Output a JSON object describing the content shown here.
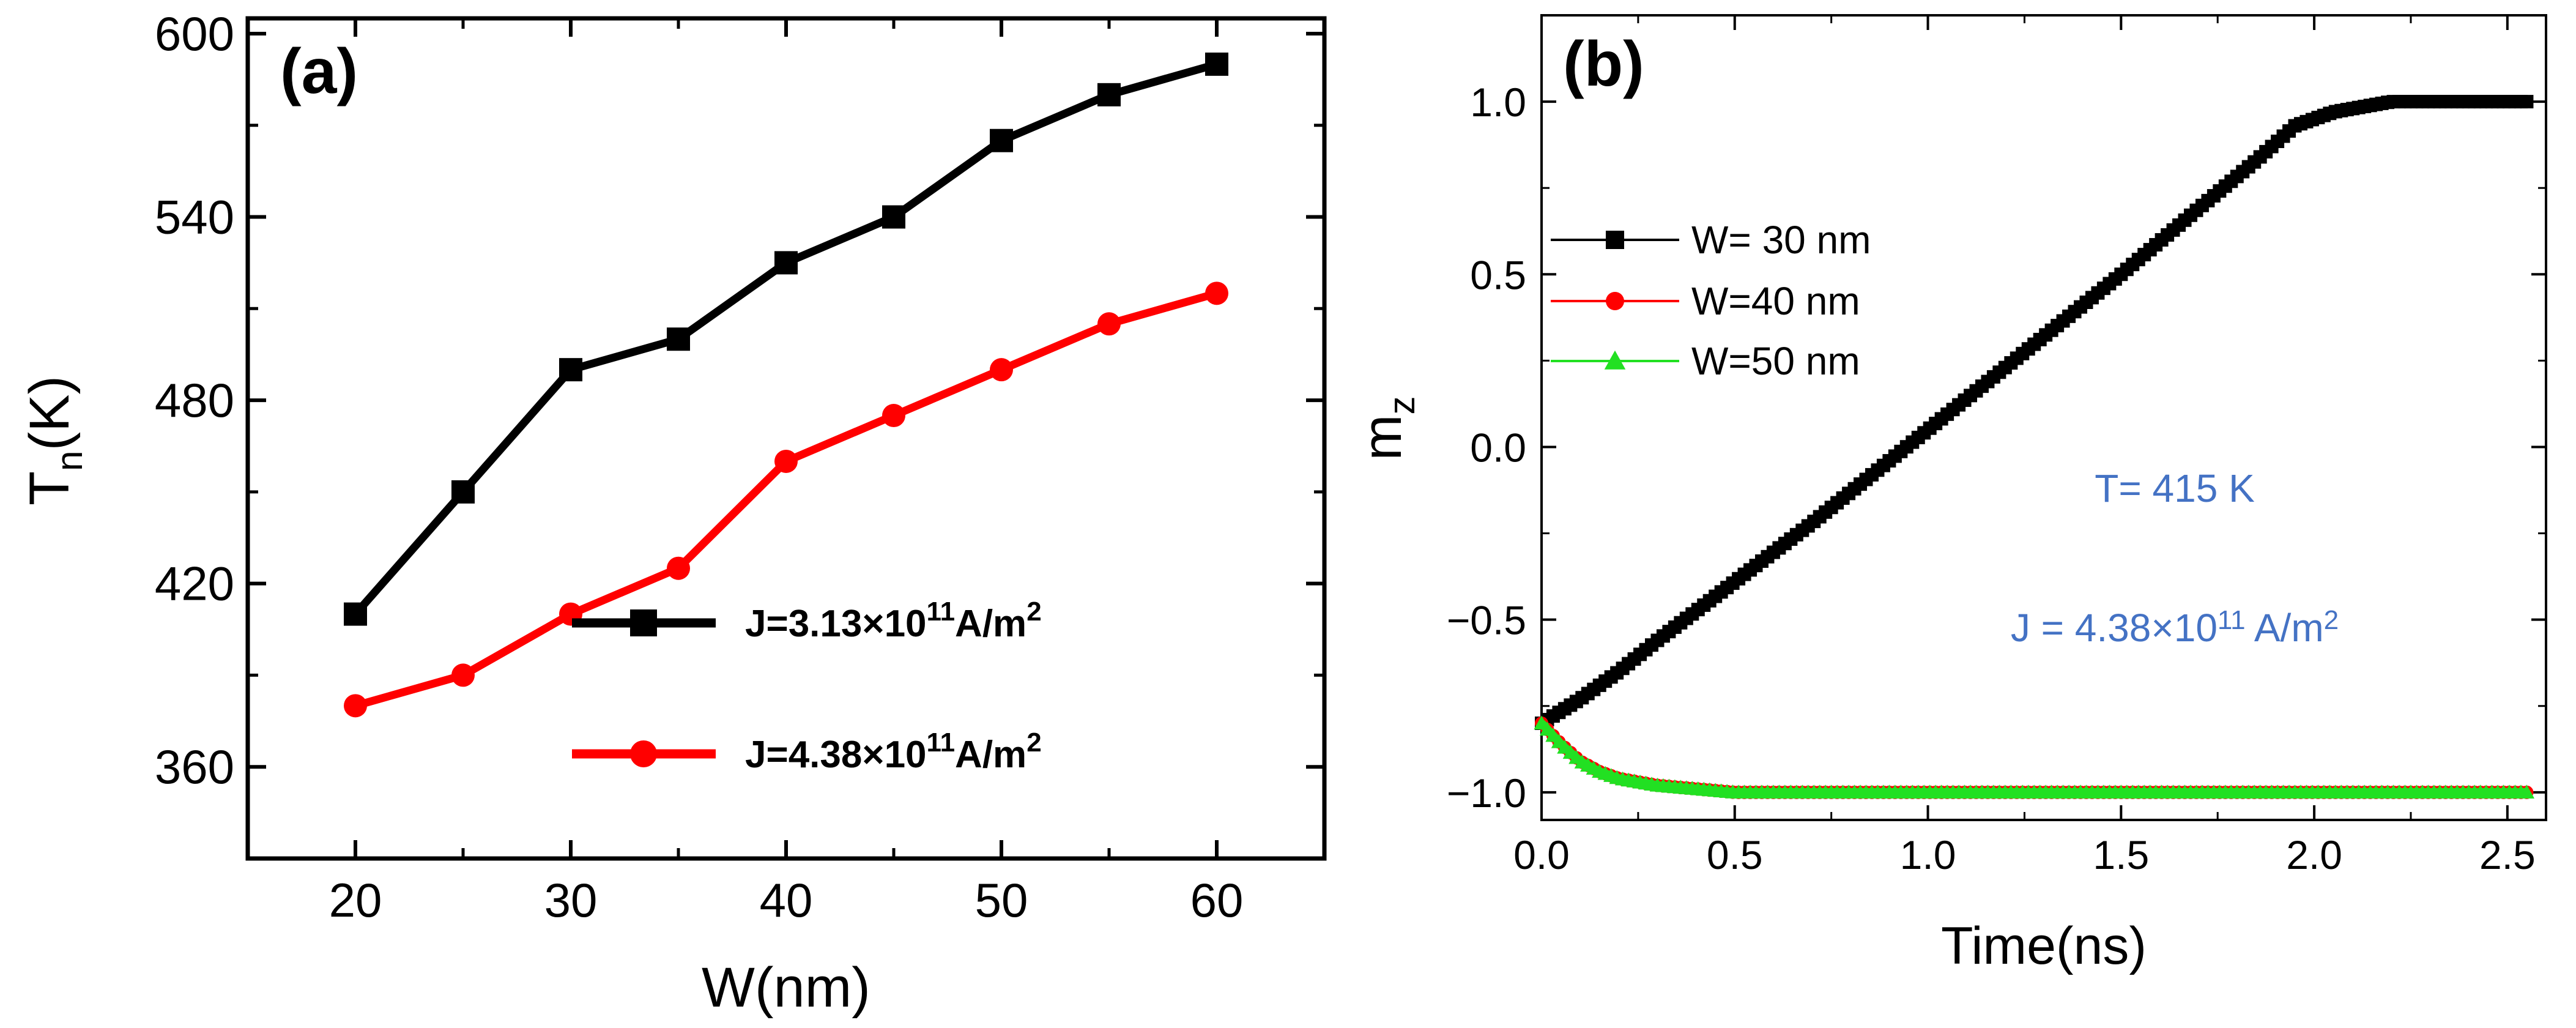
{
  "chart_data": [
    {
      "type": "line",
      "panel_label": "(a)",
      "xlabel": "W(nm)",
      "ylabel": "T",
      "ylabel_sub": "n",
      "ylabel_suffix": "(K)",
      "xlim": [
        15,
        65
      ],
      "ylim": [
        330,
        605
      ],
      "x_ticks": [
        20,
        30,
        40,
        50,
        60
      ],
      "y_ticks": [
        360,
        420,
        480,
        540,
        600
      ],
      "x": [
        20,
        25,
        30,
        35,
        40,
        45,
        50,
        55,
        60
      ],
      "series": [
        {
          "name": "J=3.13×10",
          "name_exp": "11",
          "name_unit": "A/m",
          "name_unit_exp": "2",
          "color": "#000000",
          "marker": "square",
          "values": [
            410,
            450,
            490,
            500,
            525,
            540,
            565,
            580,
            590
          ]
        },
        {
          "name": "J=4.38×10",
          "name_exp": "11",
          "name_unit": "A/m",
          "name_unit_exp": "2",
          "color": "#ff0000",
          "marker": "circle",
          "values": [
            380,
            390,
            410,
            425,
            460,
            475,
            490,
            505,
            515
          ]
        }
      ]
    },
    {
      "type": "line",
      "panel_label": "(b)",
      "xlabel": "Time(ns)",
      "ylabel": "m",
      "ylabel_sub": "z",
      "xlim": [
        0,
        2.6
      ],
      "ylim": [
        -1.08,
        1.25
      ],
      "x_ticks": [
        "0.0",
        "0.5",
        "1.0",
        "1.5",
        "2.0",
        "2.5"
      ],
      "y_ticks": [
        "1.0",
        "0.5",
        "0.0",
        "−0.5",
        "−1.0"
      ],
      "y_tick_values": [
        1.0,
        0.5,
        0.0,
        -0.5,
        -1.0
      ],
      "series": [
        {
          "name": "W= 30 nm",
          "color": "#000000",
          "marker": "square",
          "x": [
            0.0,
            0.1,
            0.2,
            0.3,
            0.5,
            0.7,
            0.9,
            1.1,
            1.3,
            1.5,
            1.7,
            1.85,
            1.95,
            2.05,
            2.2,
            2.35,
            2.55
          ],
          "values": [
            -0.8,
            -0.73,
            -0.65,
            -0.56,
            -0.39,
            -0.22,
            -0.04,
            0.14,
            0.32,
            0.5,
            0.69,
            0.83,
            0.93,
            0.97,
            1.0,
            1.0,
            1.0
          ]
        },
        {
          "name": "W=40 nm",
          "color": "#ff0000",
          "marker": "circle",
          "x": [
            0.0,
            0.05,
            0.1,
            0.15,
            0.2,
            0.3,
            0.4,
            0.5,
            0.7,
            1.0,
            1.5,
            2.0,
            2.55
          ],
          "values": [
            -0.8,
            -0.86,
            -0.91,
            -0.94,
            -0.96,
            -0.98,
            -0.99,
            -1.0,
            -1.0,
            -1.0,
            -1.0,
            -1.0,
            -1.0
          ]
        },
        {
          "name": "W=50 nm",
          "color": "#22e022",
          "marker": "triangle",
          "x": [
            0.0,
            0.05,
            0.1,
            0.15,
            0.2,
            0.3,
            0.4,
            0.5,
            0.7,
            1.0,
            1.5,
            2.0,
            2.55
          ],
          "values": [
            -0.8,
            -0.86,
            -0.91,
            -0.94,
            -0.96,
            -0.98,
            -0.99,
            -1.0,
            -1.0,
            -1.0,
            -1.0,
            -1.0,
            -1.0
          ]
        }
      ],
      "annotations": [
        {
          "text": "T= 415 K",
          "color": "#4472c4"
        },
        {
          "text": "J = 4.38×10",
          "exp": "11",
          "unit": " A/m",
          "unit_exp": "2",
          "color": "#4472c4"
        }
      ]
    }
  ]
}
